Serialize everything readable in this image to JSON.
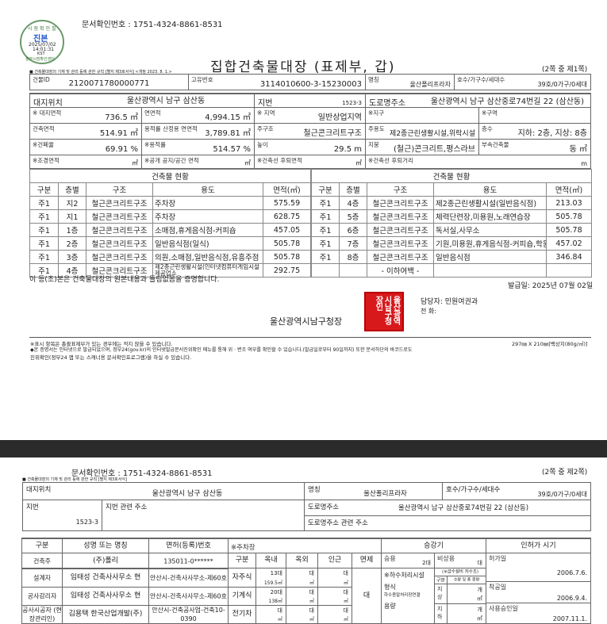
{
  "page1": {
    "seal": {
      "top": "시점확인필",
      "center": "진본",
      "date": "2025/07/02",
      "time": "14:01:31",
      "tz": "KST",
      "bottom": "정부시점확인센터",
      "color": "#6a9a6a"
    },
    "doc_number": "문서확인번호 : 1751-4324-8861-8531",
    "title": "집합건축물대장 (표제부, 갑)",
    "page_indicator": "(2쪽 중 제1쪽)",
    "law_note": "■ 건축물대장의 기재 및 관리 등에 관한 규칙 [별지 제3호서식] <개정 2023. 8. 1.>",
    "header": {
      "building_id_label": "건물ID",
      "building_id": "2120071780000771",
      "unique_no_label": "고유번호",
      "unique_no": "3114010600-3-15230003",
      "name_label": "명칭",
      "name": "울산폴리프라자",
      "units_label": "호수/가구수/세대수",
      "units": "39호/0가구/0세대",
      "site_label": "대지위치",
      "site": "울산광역시 남구 삼산동",
      "lot_label": "지번",
      "lot": "1523-3",
      "road_label": "도로명주소",
      "road": "울산광역시 남구 삼산중로74번길 22 (삼산동)",
      "site_area_label": "※ 대지면적",
      "site_area": "736.5 ㎡",
      "total_area_label": "연면적",
      "total_area": "4,994.15 ㎡",
      "zone_label": "※ 지역",
      "zone": "일반상업지역",
      "district_label": "※지구",
      "district": "",
      "area_label": "※구역",
      "area": "",
      "building_area_label": "건축면적",
      "building_area": "514.91 ㎡",
      "far_area_label": "용적률 산정용 연면적",
      "far_area": "3,789.81 ㎡",
      "structure_label": "주구조",
      "structure": "철근콘크리트구조",
      "use_label": "주용도",
      "use": "제2종근린생활시설,위락시설",
      "floors_label": "층수",
      "floors": "지하: 2층, 지상: 8층",
      "bcr_label": "※건폐율",
      "bcr": "69.91 %",
      "far_label": "※용적률",
      "far": "514.57 %",
      "height_label": "높이",
      "height": "29.5 m",
      "roof_label": "지붕",
      "roof": "(철근)콘크리트,평스라브",
      "annex_label": "부속건축물",
      "annex": "동      ㎡",
      "landscape_label": "※조경면적",
      "landscape": "㎡",
      "open_space_label": "※공개 공지/공간 면적",
      "open_space": "㎡",
      "setback_area_label": "※건축선 후퇴면적",
      "setback_area": "㎡",
      "setback_dist_label": "※건축선 후퇴거리",
      "setback_dist": "m"
    },
    "status_title": "건축물 현황",
    "status_columns": [
      "구분",
      "층별",
      "구조",
      "용도",
      "면적(㎡)"
    ],
    "status_left": [
      [
        "주1",
        "지2",
        "철근콘크리트구조",
        "주차장",
        "575.59"
      ],
      [
        "주1",
        "지1",
        "철근콘크리트구조",
        "주차장",
        "628.75"
      ],
      [
        "주1",
        "1층",
        "철근콘크리트구조",
        "소매점,휴게음식점-커피숍",
        "457.05"
      ],
      [
        "주1",
        "2층",
        "철근콘크리트구조",
        "일반음식점(일식)",
        "505.78"
      ],
      [
        "주1",
        "3층",
        "철근콘크리트구조",
        "의원,소매점,일반음식점,유흥주점",
        "505.78"
      ],
      [
        "주1",
        "4층",
        "철근콘크리트구조",
        "제2종근린생활시설(인터넷컴퓨터게임시설제공업소",
        "292.75"
      ]
    ],
    "status_right": [
      [
        "주1",
        "4층",
        "철근콘크리트구조",
        "제2종근린생활시설(일반음식점)",
        "213.03"
      ],
      [
        "주1",
        "5층",
        "철근콘크리트구조",
        "체력단련장,미용원,노래연습장",
        "505.78"
      ],
      [
        "주1",
        "6층",
        "철근콘크리트구조",
        "독서실,사무소",
        "505.78"
      ],
      [
        "주1",
        "7층",
        "철근콘크리트구조",
        "기원,미용원,휴게음식점-커피숍,학원",
        "457.02"
      ],
      [
        "주1",
        "8층",
        "철근콘크리트구조",
        "일반음식점",
        "346.84"
      ],
      [
        "",
        "",
        "- 이하여백 -",
        "",
        ""
      ]
    ],
    "certify": "이 등(초)본은 건축물대장의 원본내용과 틀림없음을 증명합니다.",
    "issue_date": "발급일:  2025년 07월 02일",
    "issuer": "울산광역시남구청장",
    "stamp_text": "울산광역시남구청장인",
    "stamp_color": "#d8191c",
    "manager": "담당자:  민원여권과",
    "phone": "전    화:",
    "foot1": "※표시 항목은 총괄표제부가 있는 경우에는 적지 않을 수 있습니다.",
    "paper": "297㎜ X 210㎜[백상지(80g/㎡)]",
    "foot2": "◆본 증명서는 인터넷으로 발급되었으며, 정부24(gov.kr)의 인터넷발급문서진위확인 메뉴를 통해 위 · 변조 여부를 확인할 수 있습니다.(발급일로부터 90일까지) 또한 문서하단의 바코드로도",
    "foot3": "진위확인(정부24 앱 또는 스캐너용 문서확인프로그램)을 하실 수 있습니다."
  },
  "page2": {
    "doc_number": "문서확인번호 : 1751-4324-8861-8531",
    "page_indicator": "(2쪽 중 제2쪽)",
    "law_note": "■ 건축물대장의 기재 및 관리 등에 관한 규칙 [별지 제3호서식]",
    "site_label": "대지위치",
    "site": "울산광역시 남구 삼산동",
    "name_label": "명칭",
    "name": "울산폴리프라자",
    "units_label": "호수/가구수/세대수",
    "units": "39호/0가구/0세대",
    "lot_label": "지번",
    "lot": "1523-3",
    "lot_related_label": "지번 관련 주소",
    "road_label": "도로명주소",
    "road": "울산광역시 남구 삼산중로74번길 22 (삼산동)",
    "road_related_label": "도로명주소 관련 주소",
    "people_headers": [
      "구분",
      "성명 또는 명칭",
      "면허(등록)번호"
    ],
    "people": [
      [
        "건축주",
        "(주)폴리",
        "135011-0******"
      ],
      [
        "설계자",
        "임태성 건축사사무소 현",
        "안산시-건축사사무소-제60호"
      ],
      [
        "공사감리자",
        "임태성 건축사사무소 현",
        "안산시-건축사사무소-제60호"
      ],
      [
        "공사시공자 (현장관리인)",
        "김용택 한국산업개발(주)",
        "안산시-건축공사업-건축10-0390"
      ]
    ],
    "parking": {
      "title": "※주차장",
      "headers": [
        "구분",
        "옥내",
        "옥외",
        "인근",
        "면제"
      ],
      "rows": [
        {
          "type": "자주식",
          "indoor": "13대",
          "indoor_area": "159.5㎡",
          "outdoor": "대",
          "outdoor_area": "㎡",
          "nearby": "대",
          "nearby_area": "㎡"
        },
        {
          "type": "기계식",
          "indoor": "20대",
          "indoor_area": "138㎡",
          "outdoor": "대",
          "outdoor_area": "㎡",
          "nearby": "대",
          "nearby_area": "㎡"
        },
        {
          "type": "전기차",
          "indoor": "대",
          "indoor_area": "㎡",
          "outdoor": "대",
          "outdoor_area": "㎡",
          "nearby": "대",
          "nearby_area": "㎡"
        }
      ],
      "exempt": "대"
    },
    "elevator": {
      "title": "승강기",
      "passenger_label": "승용",
      "passenger": "2대",
      "emergency_label": "비상용",
      "emergency": "대"
    },
    "sewage": {
      "label": "※하수처리시설",
      "type_label": "형식",
      "type": "하수종말처리장연결",
      "capacity_label": "용량",
      "tank_label": "(※급수설비 저수조)",
      "col_a": "구분",
      "col_b": "수량 및 총 중량",
      "above_label": "지상",
      "above_count": "개",
      "above_area": "㎡",
      "below_label": "지하",
      "below_count": "개",
      "below_area": "㎡"
    },
    "permits": {
      "title": "인허가 시기",
      "permit_label": "허가일",
      "permit": "2006.7.6.",
      "start_label": "착공일",
      "start": "2006.9.4.",
      "approval_label": "사용승인일",
      "approval": "2007.11.1."
    }
  }
}
